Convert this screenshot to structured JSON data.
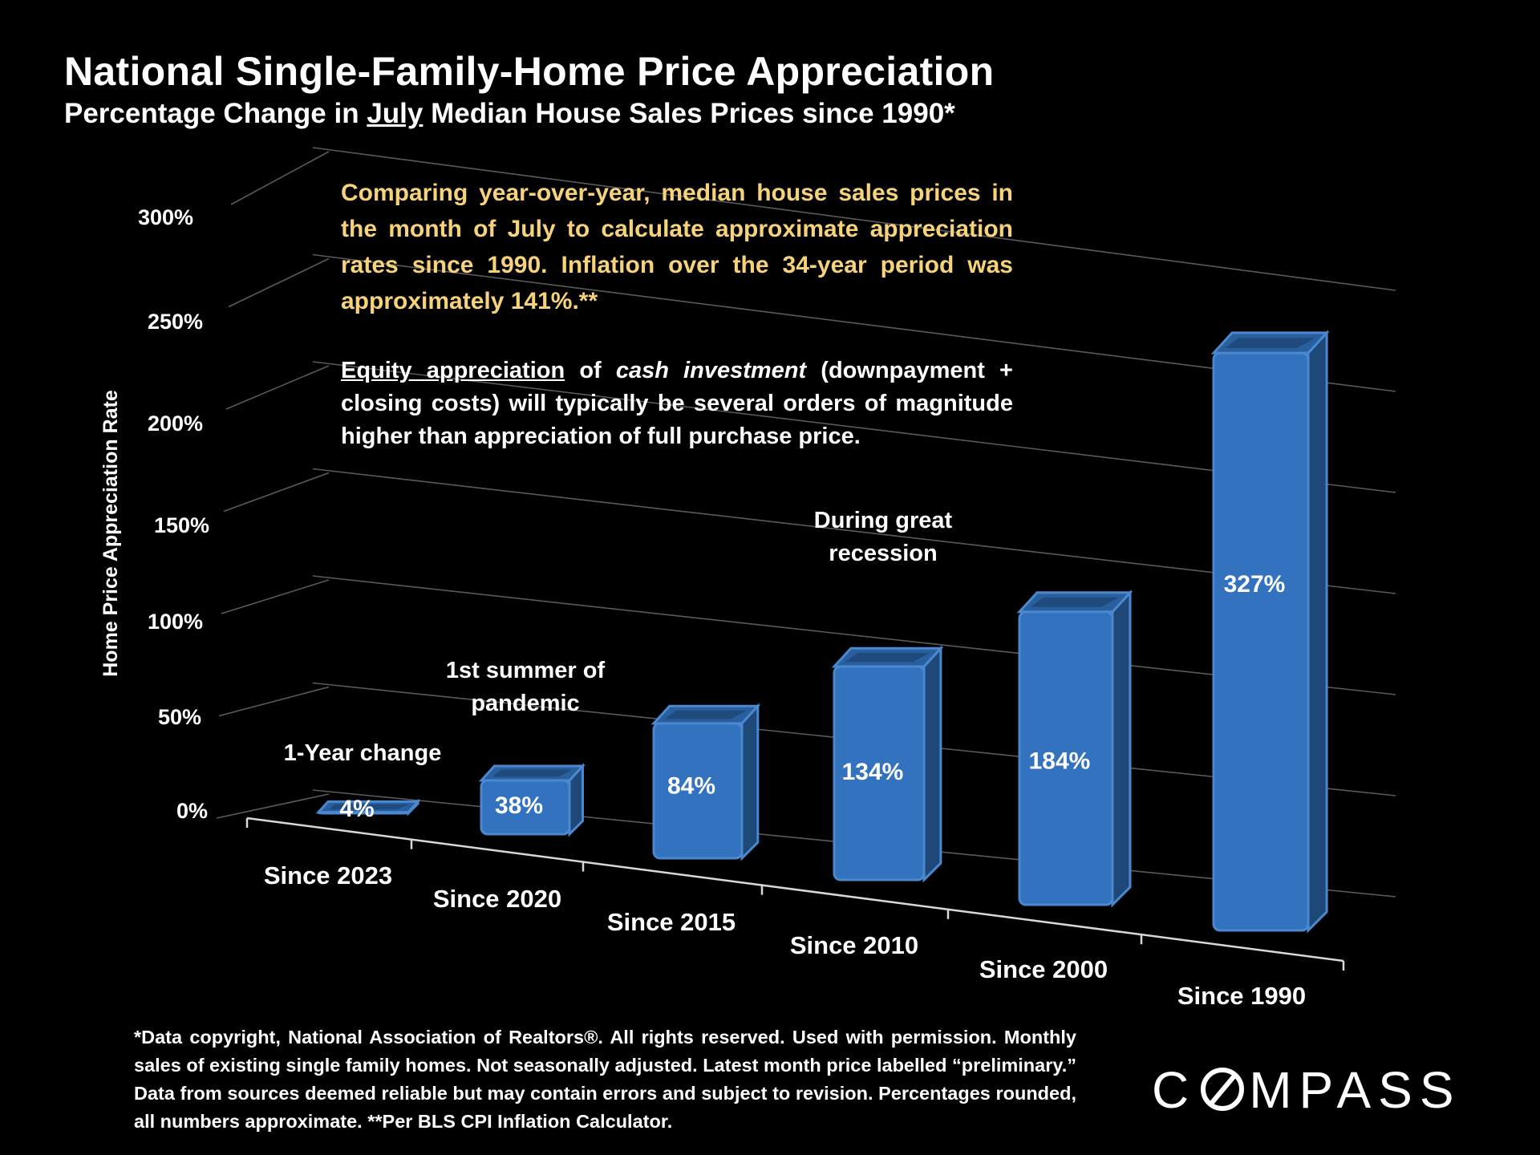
{
  "header": {
    "title": "National Single-Family-Home Price Appreciation",
    "subtitle_pre": "Percentage Change in ",
    "subtitle_month": "July",
    "subtitle_post": " Median House Sales Prices since 1990*"
  },
  "notes": {
    "yellow": "Comparing year-over-year, median house sales prices in the month of July to calculate approximate appreciation rates since 1990. Inflation over the 34-year period was approximately 141%.**",
    "equity_underlined": "Equity appreciation",
    "equity_of": " of ",
    "equity_italic": "cash investment",
    "equity_rest": " (downpayment + closing costs) will typically be several orders of magnitude higher than appreciation of full purchase price."
  },
  "chart_data": {
    "type": "bar",
    "style": "3d",
    "categories": [
      "Since 2023",
      "Since 2020",
      "Since 2015",
      "Since 2010",
      "Since 2000",
      "Since 1990"
    ],
    "values": [
      4,
      38,
      84,
      134,
      184,
      327
    ],
    "value_labels": [
      "4%",
      "38%",
      "84%",
      "134%",
      "184%",
      "327%"
    ],
    "ylabel": "Home Price Appreciation Rate",
    "ylim": [
      0,
      300
    ],
    "yticks": [
      0,
      50,
      100,
      150,
      200,
      250,
      300
    ],
    "ytick_labels": [
      "0%",
      "50%",
      "100%",
      "150%",
      "200%",
      "250%",
      "300%"
    ],
    "grid": true,
    "annotations": [
      {
        "category": "Since 2023",
        "text": "1-Year change"
      },
      {
        "category": "Since 2020",
        "text_lines": [
          "1st summer of",
          "pandemic"
        ]
      },
      {
        "category": "Since 2010",
        "text_lines": [
          "During great",
          "recession"
        ]
      }
    ],
    "colors": {
      "bar_front": "#3272be",
      "bar_top": "#2a5f9e",
      "bar_top_inner": "#1e4a7e",
      "bar_side": "#1d4878",
      "grid": "#5a5a5a",
      "axis": "#d8d8d8"
    }
  },
  "footnote": "*Data copyright, National Association of Realtors®. All rights reserved. Used with permission. Monthly sales of existing single family homes. Not seasonally adjusted. Latest month price labelled “preliminary.” Data from sources deemed reliable but may contain errors and subject to revision. Percentages rounded, all numbers  approximate. **Per BLS CPI Inflation Calculator.",
  "logo": {
    "before": "C",
    "after": "MPASS"
  }
}
